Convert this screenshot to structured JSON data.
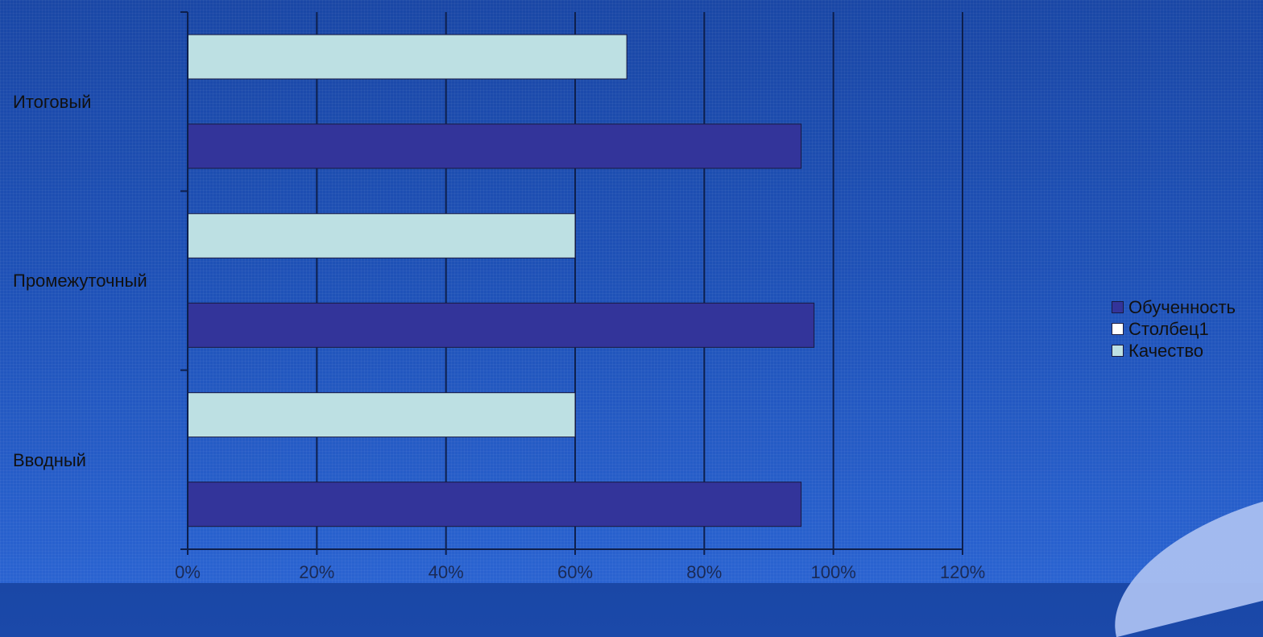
{
  "chart_data": {
    "type": "bar",
    "orientation": "horizontal",
    "categories": [
      "Итоговый",
      "Промежуточный",
      "Вводный"
    ],
    "series": [
      {
        "name": "Обученность",
        "values": [
          95,
          97,
          95
        ]
      },
      {
        "name": "Столбец1",
        "values": [
          0,
          0,
          0
        ]
      },
      {
        "name": "Качество",
        "values": [
          68,
          60,
          60
        ]
      }
    ],
    "xlim": [
      0,
      120
    ],
    "x_ticks": [
      "0%",
      "20%",
      "40%",
      "60%",
      "80%",
      "100%",
      "120%"
    ],
    "grid": "vertical",
    "legend_position": "right",
    "title": "",
    "xlabel": "",
    "ylabel": ""
  },
  "colors": {
    "Обученность": "#33349a",
    "Столбец1": "#ffffff",
    "Качество": "#bde0e3",
    "gridline": "#0d1f4d"
  }
}
